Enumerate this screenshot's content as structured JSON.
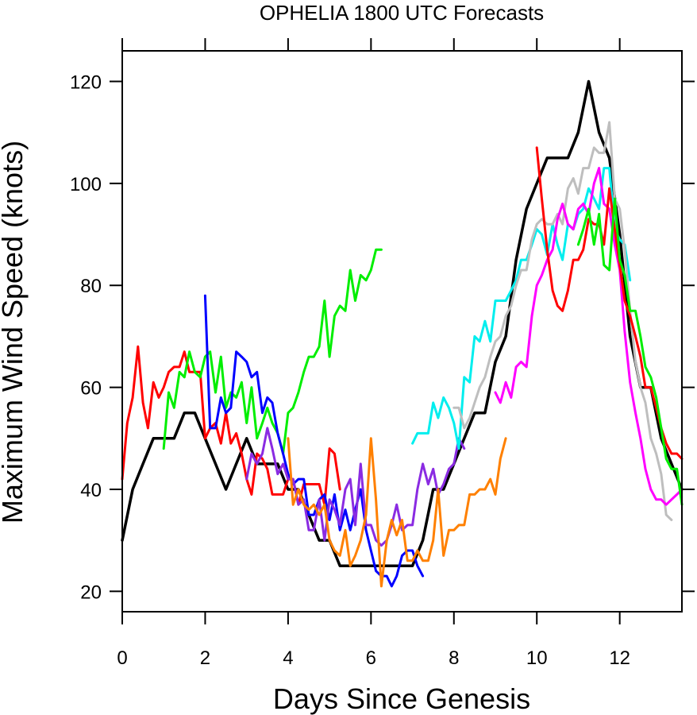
{
  "chart_data": {
    "type": "line",
    "title": "OPHELIA 1800 UTC Forecasts",
    "xlabel": "Days Since Genesis",
    "ylabel": "Maximum Wind Speed (knots)",
    "xlim": [
      0,
      13.5
    ],
    "ylim": [
      16,
      126
    ],
    "x_ticks": [
      0,
      2,
      4,
      6,
      8,
      10,
      12
    ],
    "y_ticks": [
      20,
      40,
      60,
      80,
      100,
      120
    ],
    "grid": false,
    "legend": "none",
    "series": [
      {
        "color": "#000000",
        "width": 3.5,
        "x": [
          0,
          0.25,
          0.5,
          0.75,
          1,
          1.25,
          1.5,
          1.75,
          2,
          2.25,
          2.5,
          2.75,
          3,
          3.25,
          3.5,
          3.75,
          4,
          4.25,
          4.5,
          4.75,
          5,
          5.25,
          5.5,
          5.75,
          6,
          6.25,
          6.5,
          6.75,
          7,
          7.25,
          7.5,
          7.75,
          8,
          8.25,
          8.5,
          8.75,
          9,
          9.25,
          9.5,
          9.75,
          10,
          10.25,
          10.5,
          10.75,
          11,
          11.25,
          11.5,
          11.75,
          12,
          12.25,
          12.5,
          12.75,
          13,
          13.25,
          13.5
        ],
        "y": [
          30,
          40,
          45,
          50,
          50,
          50,
          55,
          55,
          50,
          45,
          40,
          45,
          50,
          45,
          45,
          45,
          40,
          40,
          35,
          30,
          30,
          25,
          25,
          25,
          25,
          25,
          25,
          25,
          25,
          30,
          40,
          40,
          45,
          50,
          55,
          55,
          65,
          70,
          85,
          95,
          100,
          105,
          105,
          105,
          110,
          120,
          110,
          105,
          90,
          70,
          60,
          60,
          50,
          45,
          40
        ]
      },
      {
        "color": "#ff0000",
        "x": [
          0,
          0.12,
          0.25,
          0.38,
          0.5,
          0.62,
          0.75,
          0.88,
          1,
          1.12,
          1.25,
          1.38,
          1.5,
          1.62,
          1.75,
          1.88,
          2,
          2.12,
          2.25,
          2.38,
          2.5,
          2.62,
          2.75,
          2.88,
          3,
          3.12,
          3.25,
          3.38,
          3.5,
          3.62,
          3.75,
          3.88,
          4,
          4.12,
          4.25,
          4.38,
          4.5,
          4.62,
          4.75,
          4.88,
          5,
          5.12,
          5.25
        ],
        "y": [
          42,
          53,
          58,
          68,
          57,
          52,
          61,
          58,
          60,
          63,
          64,
          64,
          67,
          63,
          63,
          63,
          50,
          52,
          53,
          49,
          55,
          49,
          51,
          47,
          42,
          39,
          47,
          46,
          44,
          39,
          39,
          39,
          42,
          42,
          37,
          41,
          41,
          41,
          41,
          37,
          48,
          47,
          40
        ]
      },
      {
        "color": "#00ee00",
        "x": [
          1,
          1.12,
          1.25,
          1.38,
          1.5,
          1.62,
          1.75,
          1.88,
          2,
          2.12,
          2.25,
          2.38,
          2.5,
          2.62,
          2.75,
          2.88,
          3,
          3.12,
          3.25,
          3.38,
          3.5,
          3.62,
          3.75,
          3.88,
          4,
          4.12,
          4.25,
          4.38,
          4.5,
          4.62,
          4.75,
          4.88,
          5,
          5.12,
          5.25,
          5.38,
          5.5,
          5.62,
          5.75,
          5.88,
          6,
          6.12,
          6.25
        ],
        "y": [
          48,
          59,
          56,
          63,
          62,
          67,
          63,
          62,
          66,
          67,
          59,
          66,
          56,
          59,
          58,
          61,
          53,
          60,
          50,
          53,
          56,
          53,
          51,
          47,
          55,
          56,
          59,
          63,
          66,
          66,
          68,
          77,
          66,
          74,
          76,
          75,
          83,
          77,
          82,
          81,
          83,
          87,
          87
        ]
      },
      {
        "color": "#0000ff",
        "x": [
          2,
          2.12,
          2.25,
          2.38,
          2.5,
          2.62,
          2.75,
          2.88,
          3,
          3.12,
          3.25,
          3.38,
          3.5,
          3.62,
          3.75,
          3.88,
          4,
          4.12,
          4.25,
          4.38,
          4.5,
          4.62,
          4.75,
          4.88,
          5,
          5.12,
          5.25,
          5.38,
          5.5,
          5.62,
          5.75,
          5.88,
          6,
          6.12,
          6.25,
          6.38,
          6.5,
          6.62,
          6.75,
          6.88,
          7,
          7.12,
          7.25
        ],
        "y": [
          78,
          52,
          52,
          58,
          55,
          56,
          67,
          66,
          65,
          62,
          63,
          55,
          58,
          57,
          51,
          47,
          43,
          41,
          42,
          42,
          35,
          35,
          38,
          39,
          34,
          39,
          32,
          36,
          32,
          36,
          40,
          32,
          28,
          24,
          23,
          23,
          21,
          23,
          27,
          28,
          28,
          25,
          23
        ]
      },
      {
        "color": "#8a2be2",
        "x": [
          3,
          3.12,
          3.25,
          3.38,
          3.5,
          3.62,
          3.75,
          3.88,
          4,
          4.12,
          4.25,
          4.38,
          4.5,
          4.62,
          4.75,
          4.88,
          5,
          5.12,
          5.25,
          5.38,
          5.5,
          5.62,
          5.75,
          5.88,
          6,
          6.12,
          6.25,
          6.38,
          6.5,
          6.62,
          6.75,
          6.88,
          7,
          7.12,
          7.25,
          7.38,
          7.5,
          7.62,
          7.75,
          7.88,
          8,
          8.12,
          8.25
        ],
        "y": [
          42,
          47,
          45,
          47,
          52,
          48,
          43,
          45,
          42,
          42,
          37,
          38,
          32,
          32,
          38,
          30,
          38,
          36,
          33,
          40,
          42,
          33,
          45,
          33,
          33,
          30,
          29,
          30,
          33,
          37,
          32,
          33,
          33,
          40,
          45,
          41,
          44,
          39,
          41,
          44,
          45,
          50,
          48
        ]
      },
      {
        "color": "#ff8000",
        "x": [
          4,
          4.12,
          4.25,
          4.38,
          4.5,
          4.62,
          4.75,
          4.88,
          5,
          5.12,
          5.25,
          5.38,
          5.5,
          5.62,
          5.75,
          5.88,
          6,
          6.12,
          6.25,
          6.38,
          6.5,
          6.62,
          6.75,
          6.88,
          7,
          7.12,
          7.25,
          7.38,
          7.5,
          7.62,
          7.75,
          7.88,
          8,
          8.12,
          8.25,
          8.38,
          8.5,
          8.62,
          8.75,
          8.88,
          9,
          9.12,
          9.25
        ],
        "y": [
          50,
          37,
          40,
          37,
          36,
          37,
          35,
          37,
          30,
          28,
          27,
          32,
          25,
          27,
          30,
          35,
          50,
          38,
          21,
          30,
          34,
          31,
          34,
          26,
          26,
          28,
          26,
          26,
          30,
          40,
          27,
          32,
          32,
          33,
          33,
          39,
          39,
          40,
          40,
          42,
          39,
          46,
          50
        ]
      },
      {
        "color": "#00eeee",
        "x": [
          7,
          7.12,
          7.25,
          7.38,
          7.5,
          7.62,
          7.75,
          7.88,
          8,
          8.12,
          8.25,
          8.38,
          8.5,
          8.62,
          8.75,
          8.88,
          9,
          9.12,
          9.25,
          9.38,
          9.5,
          9.62,
          9.75,
          9.88,
          10,
          10.12,
          10.25,
          10.38,
          10.5,
          10.62,
          10.75,
          10.88,
          11,
          11.12,
          11.25,
          11.38,
          11.5,
          11.62,
          11.75,
          11.88,
          12,
          12.12,
          12.25
        ],
        "y": [
          49,
          51,
          51,
          51,
          57,
          54,
          58,
          56,
          53,
          48,
          62,
          61,
          70,
          69,
          73,
          69,
          77,
          77,
          77,
          79,
          81,
          85,
          85,
          88,
          91,
          90,
          86,
          92,
          88,
          85,
          92,
          91,
          94,
          95,
          99,
          97,
          95,
          103,
          103,
          91,
          89,
          88,
          81
        ]
      },
      {
        "color": "#bebebe",
        "x": [
          8,
          8.12,
          8.25,
          8.38,
          8.5,
          8.62,
          8.75,
          8.88,
          9,
          9.12,
          9.25,
          9.38,
          9.5,
          9.62,
          9.75,
          9.88,
          10,
          10.12,
          10.25,
          10.38,
          10.5,
          10.62,
          10.75,
          10.88,
          11,
          11.12,
          11.25,
          11.38,
          11.5,
          11.62,
          11.75,
          11.88,
          12,
          12.12,
          12.25,
          12.38,
          12.5,
          12.62,
          12.75,
          12.88,
          13,
          13.12,
          13.25
        ],
        "y": [
          56,
          56,
          52,
          54,
          57,
          60,
          62,
          66,
          69,
          70,
          74,
          76,
          80,
          83,
          83,
          89,
          92,
          93,
          92,
          92,
          94,
          92,
          99,
          101,
          98,
          103,
          103,
          107,
          106,
          106,
          112,
          97,
          95,
          87,
          75,
          65,
          60,
          57,
          50,
          47,
          43,
          35,
          34
        ]
      },
      {
        "color": "#ff00ff",
        "x": [
          9,
          9.12,
          9.25,
          9.38,
          9.5,
          9.62,
          9.75,
          9.88,
          10,
          10.12,
          10.25,
          10.38,
          10.5,
          10.62,
          10.75,
          10.88,
          11,
          11.12,
          11.25,
          11.38,
          11.5,
          11.62,
          11.75,
          11.88,
          12,
          12.12,
          12.25,
          12.38,
          12.5,
          12.62,
          12.75,
          12.88,
          13,
          13.12,
          13.25,
          13.38,
          13.5
        ],
        "y": [
          59,
          57,
          61,
          58,
          64,
          65,
          64,
          74,
          80,
          82,
          85,
          87,
          93,
          96,
          92,
          91,
          95,
          96,
          94,
          100,
          103,
          96,
          95,
          88,
          83,
          71,
          61,
          55,
          50,
          44,
          40,
          38,
          38,
          37,
          38,
          39,
          40
        ]
      },
      {
        "color": "#ff0000",
        "x": [
          10,
          10.12,
          10.25,
          10.38,
          10.5,
          10.62,
          10.75,
          10.88,
          11,
          11.12,
          11.25,
          11.38,
          11.5,
          11.62,
          11.75,
          11.88,
          12,
          12.12,
          12.25,
          12.38,
          12.5,
          12.62,
          12.75,
          12.88,
          13,
          13.12,
          13.25,
          13.38,
          13.5
        ],
        "y": [
          107,
          97,
          87,
          79,
          76,
          75,
          79,
          85,
          85,
          87,
          93,
          92,
          92,
          88,
          99,
          91,
          84,
          77,
          74,
          70,
          66,
          60,
          60,
          56,
          52,
          49,
          47,
          47,
          46
        ]
      },
      {
        "color": "#00ee00",
        "x": [
          11,
          11.12,
          11.25,
          11.38,
          11.5,
          11.62,
          11.75,
          11.88,
          12,
          12.12,
          12.25,
          12.38,
          12.5,
          12.62,
          12.75,
          12.88,
          13,
          13.12,
          13.25,
          13.38,
          13.5
        ],
        "y": [
          88,
          91,
          95,
          88,
          94,
          84,
          83,
          97,
          85,
          82,
          75,
          75,
          70,
          64,
          62,
          58,
          52,
          46,
          44,
          44,
          37
        ]
      }
    ]
  }
}
